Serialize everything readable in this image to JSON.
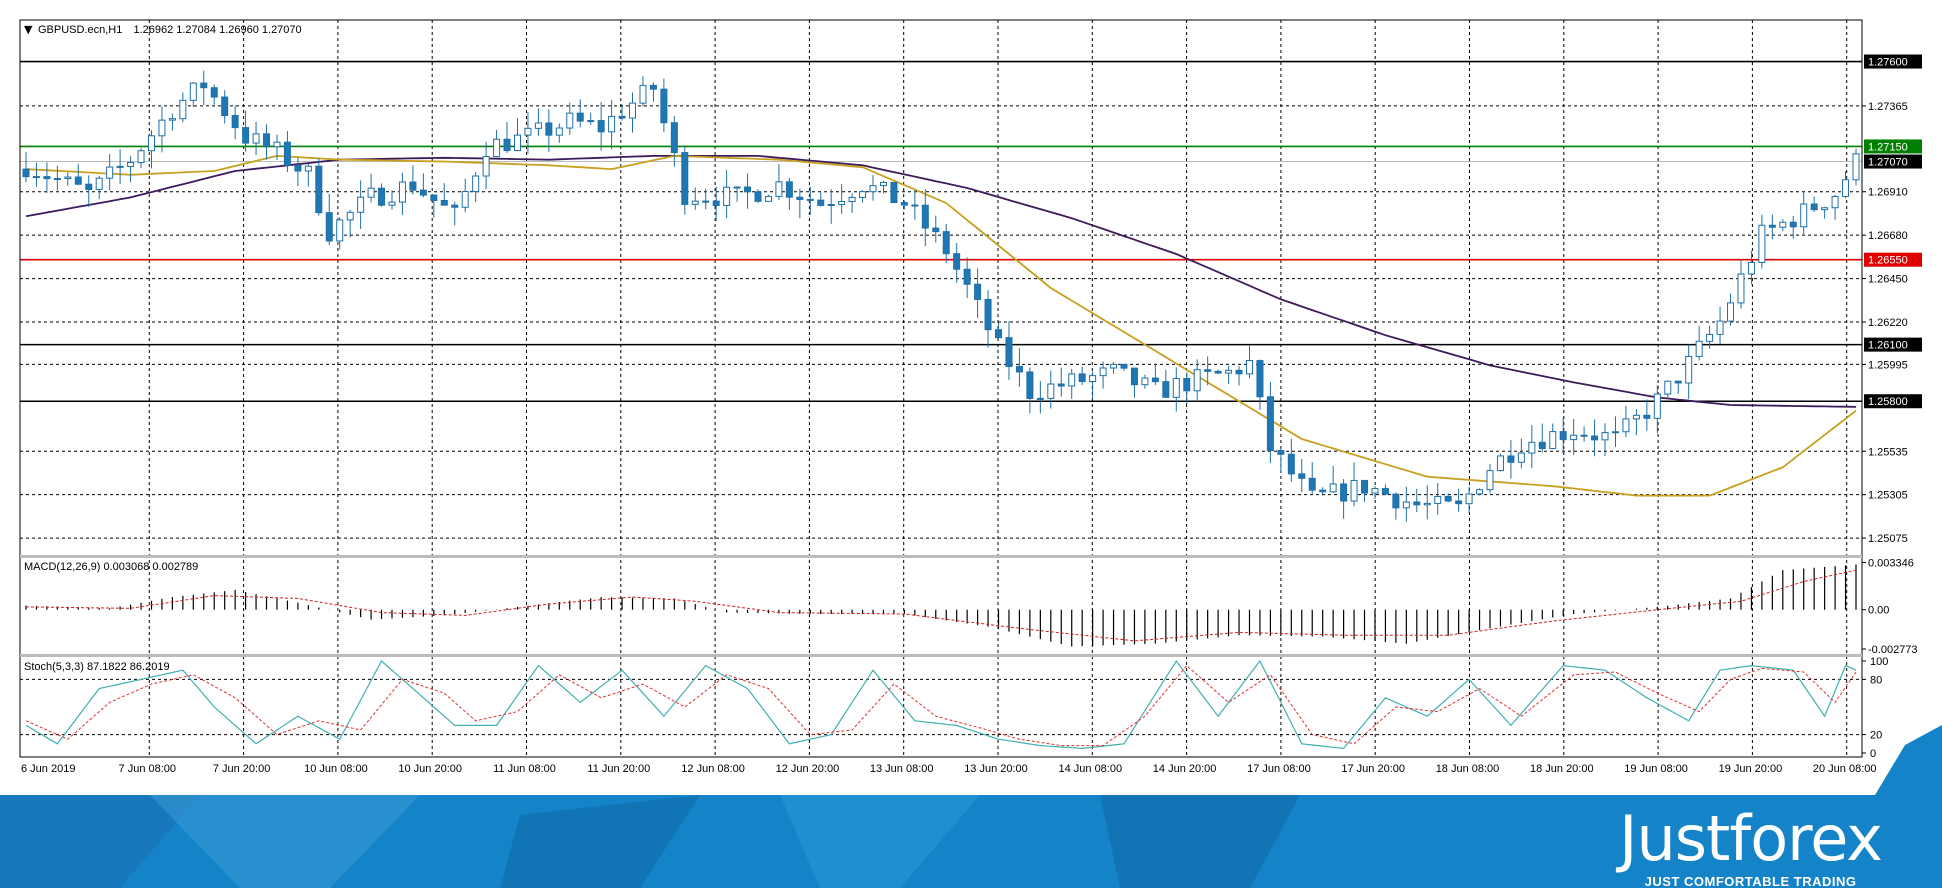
{
  "header": {
    "symbol": "GBPUSD.ecn,H1",
    "ohlc": "1.26962 1.27084 1.26960 1.27070"
  },
  "macd": {
    "label": "MACD(12,26,9) 0.003068 0.002789"
  },
  "stoch": {
    "label": "Stoch(5,3,3) 87.1822 86.2019"
  },
  "brand": {
    "name": "Justforex",
    "tagline": "JUST COMFORTABLE TRADING"
  },
  "colors": {
    "bull": "#ffffff",
    "bear": "#1f77b4",
    "candle_outline": "#1f6fa8",
    "ma_fast": "#c8a020",
    "ma_slow": "#3d1a5a",
    "level_black": "#000000",
    "level_green": "#008000",
    "level_red": "#e00000",
    "stoch_main": "#40b0b0",
    "stoch_signal": "#e03030",
    "banner": "#1583c8"
  },
  "chart_data": [
    {
      "type": "candlestick",
      "title": "",
      "price_ticks": [
        "1.27600",
        "1.27365",
        "1.27150",
        "1.27070",
        "1.26910",
        "1.26680",
        "1.26550",
        "1.26450",
        "1.26220",
        "1.26100",
        "1.25995",
        "1.25800",
        "1.25535",
        "1.25305",
        "1.25075"
      ],
      "levels": [
        {
          "price": 1.276,
          "label": "1.27600",
          "color": "black"
        },
        {
          "price": 1.2715,
          "label": "1.27150",
          "color": "green"
        },
        {
          "price": 1.2655,
          "label": "1.26550",
          "color": "red"
        },
        {
          "price": 1.261,
          "label": "1.26100",
          "color": "black"
        },
        {
          "price": 1.258,
          "label": "1.25800",
          "color": "black"
        }
      ],
      "current_price": {
        "price": 1.2707,
        "label": "1.27070"
      },
      "ylim": [
        1.2498,
        1.2782
      ],
      "time_labels": [
        "6 Jun 2019",
        "7 Jun 08:00",
        "7 Jun 20:00",
        "10 Jun 08:00",
        "10 Jun 20:00",
        "11 Jun 08:00",
        "11 Jun 20:00",
        "12 Jun 08:00",
        "12 Jun 20:00",
        "13 Jun 08:00",
        "13 Jun 20:00",
        "14 Jun 08:00",
        "14 Jun 20:00",
        "17 Jun 08:00",
        "17 Jun 20:00",
        "18 Jun 08:00",
        "18 Jun 20:00",
        "19 Jun 08:00",
        "19 Jun 20:00",
        "20 Jun 08:00"
      ],
      "close_path": [
        [
          0,
          1.2705
        ],
        [
          6,
          1.269
        ],
        [
          10,
          1.2708
        ],
        [
          14,
          1.2735
        ],
        [
          17,
          1.2748
        ],
        [
          21,
          1.272
        ],
        [
          24,
          1.2712
        ],
        [
          27,
          1.27
        ],
        [
          29,
          1.267
        ],
        [
          33,
          1.2688
        ],
        [
          37,
          1.2695
        ],
        [
          41,
          1.2678
        ],
        [
          44,
          1.2715
        ],
        [
          48,
          1.272
        ],
        [
          52,
          1.2728
        ],
        [
          55,
          1.2725
        ],
        [
          58,
          1.2738
        ],
        [
          60,
          1.2746
        ],
        [
          63,
          1.269
        ],
        [
          68,
          1.2688
        ],
        [
          72,
          1.2695
        ],
        [
          76,
          1.2685
        ],
        [
          80,
          1.2695
        ],
        [
          84,
          1.2685
        ],
        [
          88,
          1.266
        ],
        [
          90,
          1.264
        ],
        [
          93,
          1.2608
        ],
        [
          96,
          1.2585
        ],
        [
          100,
          1.259
        ],
        [
          104,
          1.2595
        ],
        [
          108,
          1.2585
        ],
        [
          111,
          1.259
        ],
        [
          115,
          1.2595
        ],
        [
          117,
          1.26
        ],
        [
          119,
          1.2555
        ],
        [
          123,
          1.2528
        ],
        [
          128,
          1.2535
        ],
        [
          133,
          1.2525
        ],
        [
          137,
          1.2523
        ],
        [
          140,
          1.2545
        ],
        [
          143,
          1.2558
        ],
        [
          148,
          1.2565
        ],
        [
          152,
          1.256
        ],
        [
          156,
          1.258
        ],
        [
          159,
          1.26
        ],
        [
          162,
          1.2622
        ],
        [
          166,
          1.2668
        ],
        [
          170,
          1.268
        ],
        [
          173,
          1.269
        ],
        [
          175,
          1.2707
        ]
      ],
      "ma_fast": [
        [
          0,
          1.2703
        ],
        [
          10,
          1.27
        ],
        [
          18,
          1.2702
        ],
        [
          24,
          1.271
        ],
        [
          30,
          1.2708
        ],
        [
          40,
          1.2707
        ],
        [
          50,
          1.2705
        ],
        [
          56,
          1.2703
        ],
        [
          62,
          1.271
        ],
        [
          72,
          1.2708
        ],
        [
          80,
          1.2704
        ],
        [
          88,
          1.2685
        ],
        [
          98,
          1.264
        ],
        [
          110,
          1.26
        ],
        [
          122,
          1.256
        ],
        [
          134,
          1.254
        ],
        [
          146,
          1.2535
        ],
        [
          154,
          1.253
        ],
        [
          161,
          1.253
        ],
        [
          168,
          1.2545
        ],
        [
          175,
          1.2575
        ]
      ],
      "ma_slow": [
        [
          0,
          1.2678
        ],
        [
          10,
          1.2688
        ],
        [
          20,
          1.2702
        ],
        [
          30,
          1.2708
        ],
        [
          40,
          1.2709
        ],
        [
          50,
          1.2708
        ],
        [
          60,
          1.271
        ],
        [
          70,
          1.271
        ],
        [
          80,
          1.2705
        ],
        [
          90,
          1.2693
        ],
        [
          100,
          1.2677
        ],
        [
          110,
          1.2658
        ],
        [
          120,
          1.2634
        ],
        [
          130,
          1.2615
        ],
        [
          140,
          1.2599
        ],
        [
          148,
          1.259
        ],
        [
          156,
          1.2582
        ],
        [
          163,
          1.2578
        ],
        [
          175,
          1.2577
        ]
      ]
    },
    {
      "type": "histogram",
      "title": "MACD(12,26,9) 0.003068 0.002789",
      "ticks": [
        "0.003346",
        "0.00",
        "-0.002773"
      ],
      "ylim": [
        -0.0032,
        0.0038
      ],
      "main_path": [
        [
          0,
          0.0003
        ],
        [
          8,
          0.0001
        ],
        [
          14,
          0.0009
        ],
        [
          20,
          0.0014
        ],
        [
          26,
          0.0005
        ],
        [
          33,
          -0.0007
        ],
        [
          40,
          -0.0004
        ],
        [
          47,
          0.0002
        ],
        [
          55,
          0.0009
        ],
        [
          62,
          0.0008
        ],
        [
          67,
          -0.0002
        ],
        [
          75,
          -0.0003
        ],
        [
          84,
          -0.0003
        ],
        [
          92,
          -0.0012
        ],
        [
          100,
          -0.0026
        ],
        [
          108,
          -0.0024
        ],
        [
          116,
          -0.0018
        ],
        [
          124,
          -0.0019
        ],
        [
          132,
          -0.0024
        ],
        [
          140,
          -0.0013
        ],
        [
          148,
          -0.0003
        ],
        [
          156,
          0.0002
        ],
        [
          163,
          0.0008
        ],
        [
          168,
          0.0028
        ],
        [
          175,
          0.0032
        ]
      ],
      "signal_path": [
        [
          0,
          0.0002
        ],
        [
          10,
          0.0001
        ],
        [
          18,
          0.001
        ],
        [
          26,
          0.0008
        ],
        [
          34,
          -0.0002
        ],
        [
          42,
          -0.0004
        ],
        [
          50,
          0.0004
        ],
        [
          58,
          0.0009
        ],
        [
          64,
          0.0006
        ],
        [
          72,
          -0.0002
        ],
        [
          84,
          -0.0003
        ],
        [
          96,
          -0.0014
        ],
        [
          106,
          -0.0022
        ],
        [
          116,
          -0.0016
        ],
        [
          126,
          -0.0018
        ],
        [
          136,
          -0.0018
        ],
        [
          146,
          -0.0008
        ],
        [
          156,
          0.0
        ],
        [
          164,
          0.0006
        ],
        [
          170,
          0.002
        ],
        [
          175,
          0.0028
        ]
      ]
    },
    {
      "type": "line",
      "title": "Stoch(5,3,3) 87.1822 86.2019",
      "ticks": [
        "100",
        "80",
        "20",
        "0"
      ],
      "ylim": [
        0,
        100
      ],
      "levels": [
        80,
        20
      ],
      "main_path": [
        [
          0,
          30
        ],
        [
          3,
          10
        ],
        [
          7,
          70
        ],
        [
          11,
          80
        ],
        [
          15,
          90
        ],
        [
          18,
          50
        ],
        [
          22,
          10
        ],
        [
          26,
          40
        ],
        [
          30,
          15
        ],
        [
          34,
          100
        ],
        [
          38,
          60
        ],
        [
          41,
          30
        ],
        [
          45,
          30
        ],
        [
          49,
          95
        ],
        [
          53,
          55
        ],
        [
          57,
          90
        ],
        [
          61,
          40
        ],
        [
          65,
          95
        ],
        [
          69,
          70
        ],
        [
          73,
          10
        ],
        [
          77,
          20
        ],
        [
          81,
          90
        ],
        [
          85,
          35
        ],
        [
          89,
          30
        ],
        [
          93,
          15
        ],
        [
          97,
          8
        ],
        [
          101,
          5
        ],
        [
          105,
          10
        ],
        [
          110,
          100
        ],
        [
          114,
          40
        ],
        [
          118,
          100
        ],
        [
          122,
          10
        ],
        [
          126,
          5
        ],
        [
          130,
          60
        ],
        [
          134,
          40
        ],
        [
          138,
          80
        ],
        [
          142,
          30
        ],
        [
          147,
          95
        ],
        [
          151,
          90
        ],
        [
          155,
          60
        ],
        [
          159,
          35
        ],
        [
          162,
          90
        ],
        [
          165,
          95
        ],
        [
          169,
          90
        ],
        [
          172,
          40
        ],
        [
          174,
          95
        ],
        [
          175,
          90
        ]
      ],
      "signal_path": [
        [
          0,
          35
        ],
        [
          4,
          15
        ],
        [
          8,
          55
        ],
        [
          12,
          75
        ],
        [
          16,
          85
        ],
        [
          20,
          60
        ],
        [
          24,
          20
        ],
        [
          28,
          35
        ],
        [
          32,
          25
        ],
        [
          36,
          80
        ],
        [
          40,
          65
        ],
        [
          43,
          35
        ],
        [
          47,
          45
        ],
        [
          51,
          85
        ],
        [
          55,
          60
        ],
        [
          59,
          75
        ],
        [
          63,
          50
        ],
        [
          67,
          85
        ],
        [
          71,
          70
        ],
        [
          75,
          20
        ],
        [
          79,
          25
        ],
        [
          83,
          75
        ],
        [
          87,
          40
        ],
        [
          91,
          28
        ],
        [
          95,
          15
        ],
        [
          99,
          8
        ],
        [
          103,
          8
        ],
        [
          107,
          40
        ],
        [
          111,
          95
        ],
        [
          115,
          55
        ],
        [
          119,
          85
        ],
        [
          123,
          20
        ],
        [
          127,
          10
        ],
        [
          131,
          50
        ],
        [
          135,
          45
        ],
        [
          139,
          70
        ],
        [
          143,
          40
        ],
        [
          148,
          85
        ],
        [
          152,
          88
        ],
        [
          156,
          65
        ],
        [
          160,
          45
        ],
        [
          163,
          80
        ],
        [
          166,
          92
        ],
        [
          170,
          88
        ],
        [
          173,
          55
        ],
        [
          175,
          88
        ]
      ]
    }
  ]
}
